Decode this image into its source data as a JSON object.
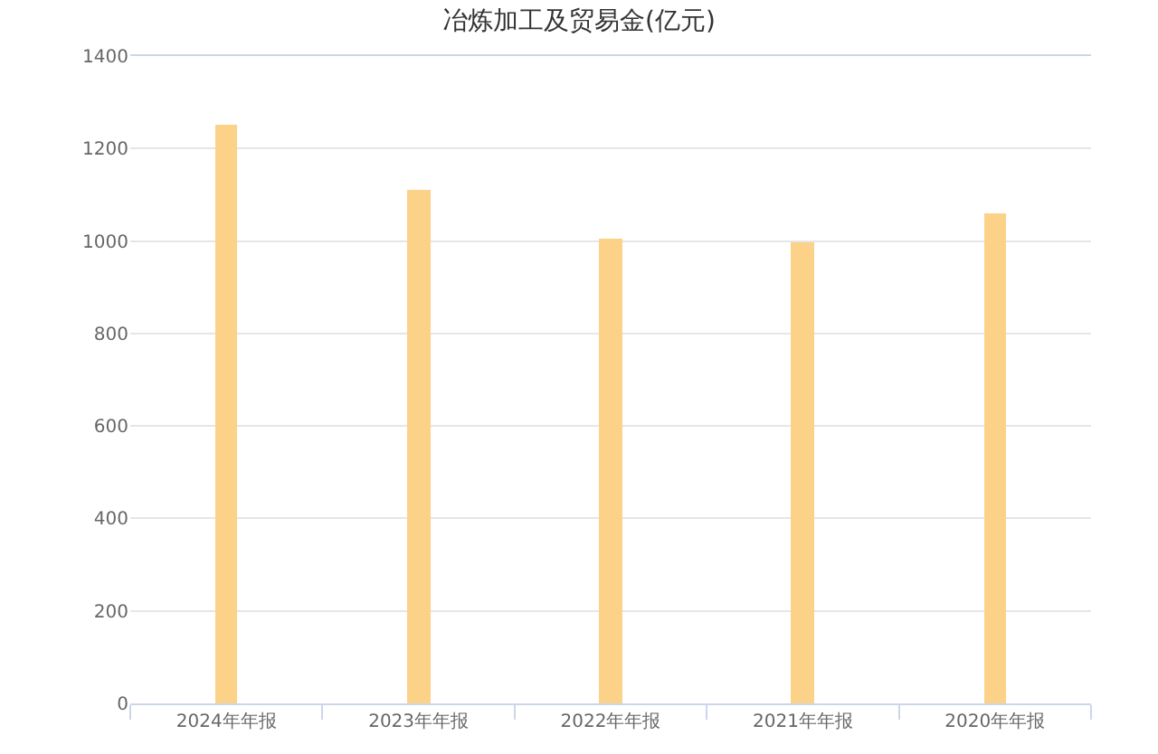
{
  "chart_data": {
    "type": "bar",
    "title": "冶炼加工及贸易金(亿元)",
    "categories": [
      "2024年年报",
      "2023年年报",
      "2022年年报",
      "2021年年报",
      "2020年年报"
    ],
    "values": [
      1251,
      1111,
      1005,
      996,
      1058
    ],
    "color": "#fcd288",
    "ylim": [
      0,
      1400
    ],
    "yticks": [
      0,
      200,
      400,
      600,
      800,
      1000,
      1200,
      1400
    ],
    "grid": "y"
  }
}
